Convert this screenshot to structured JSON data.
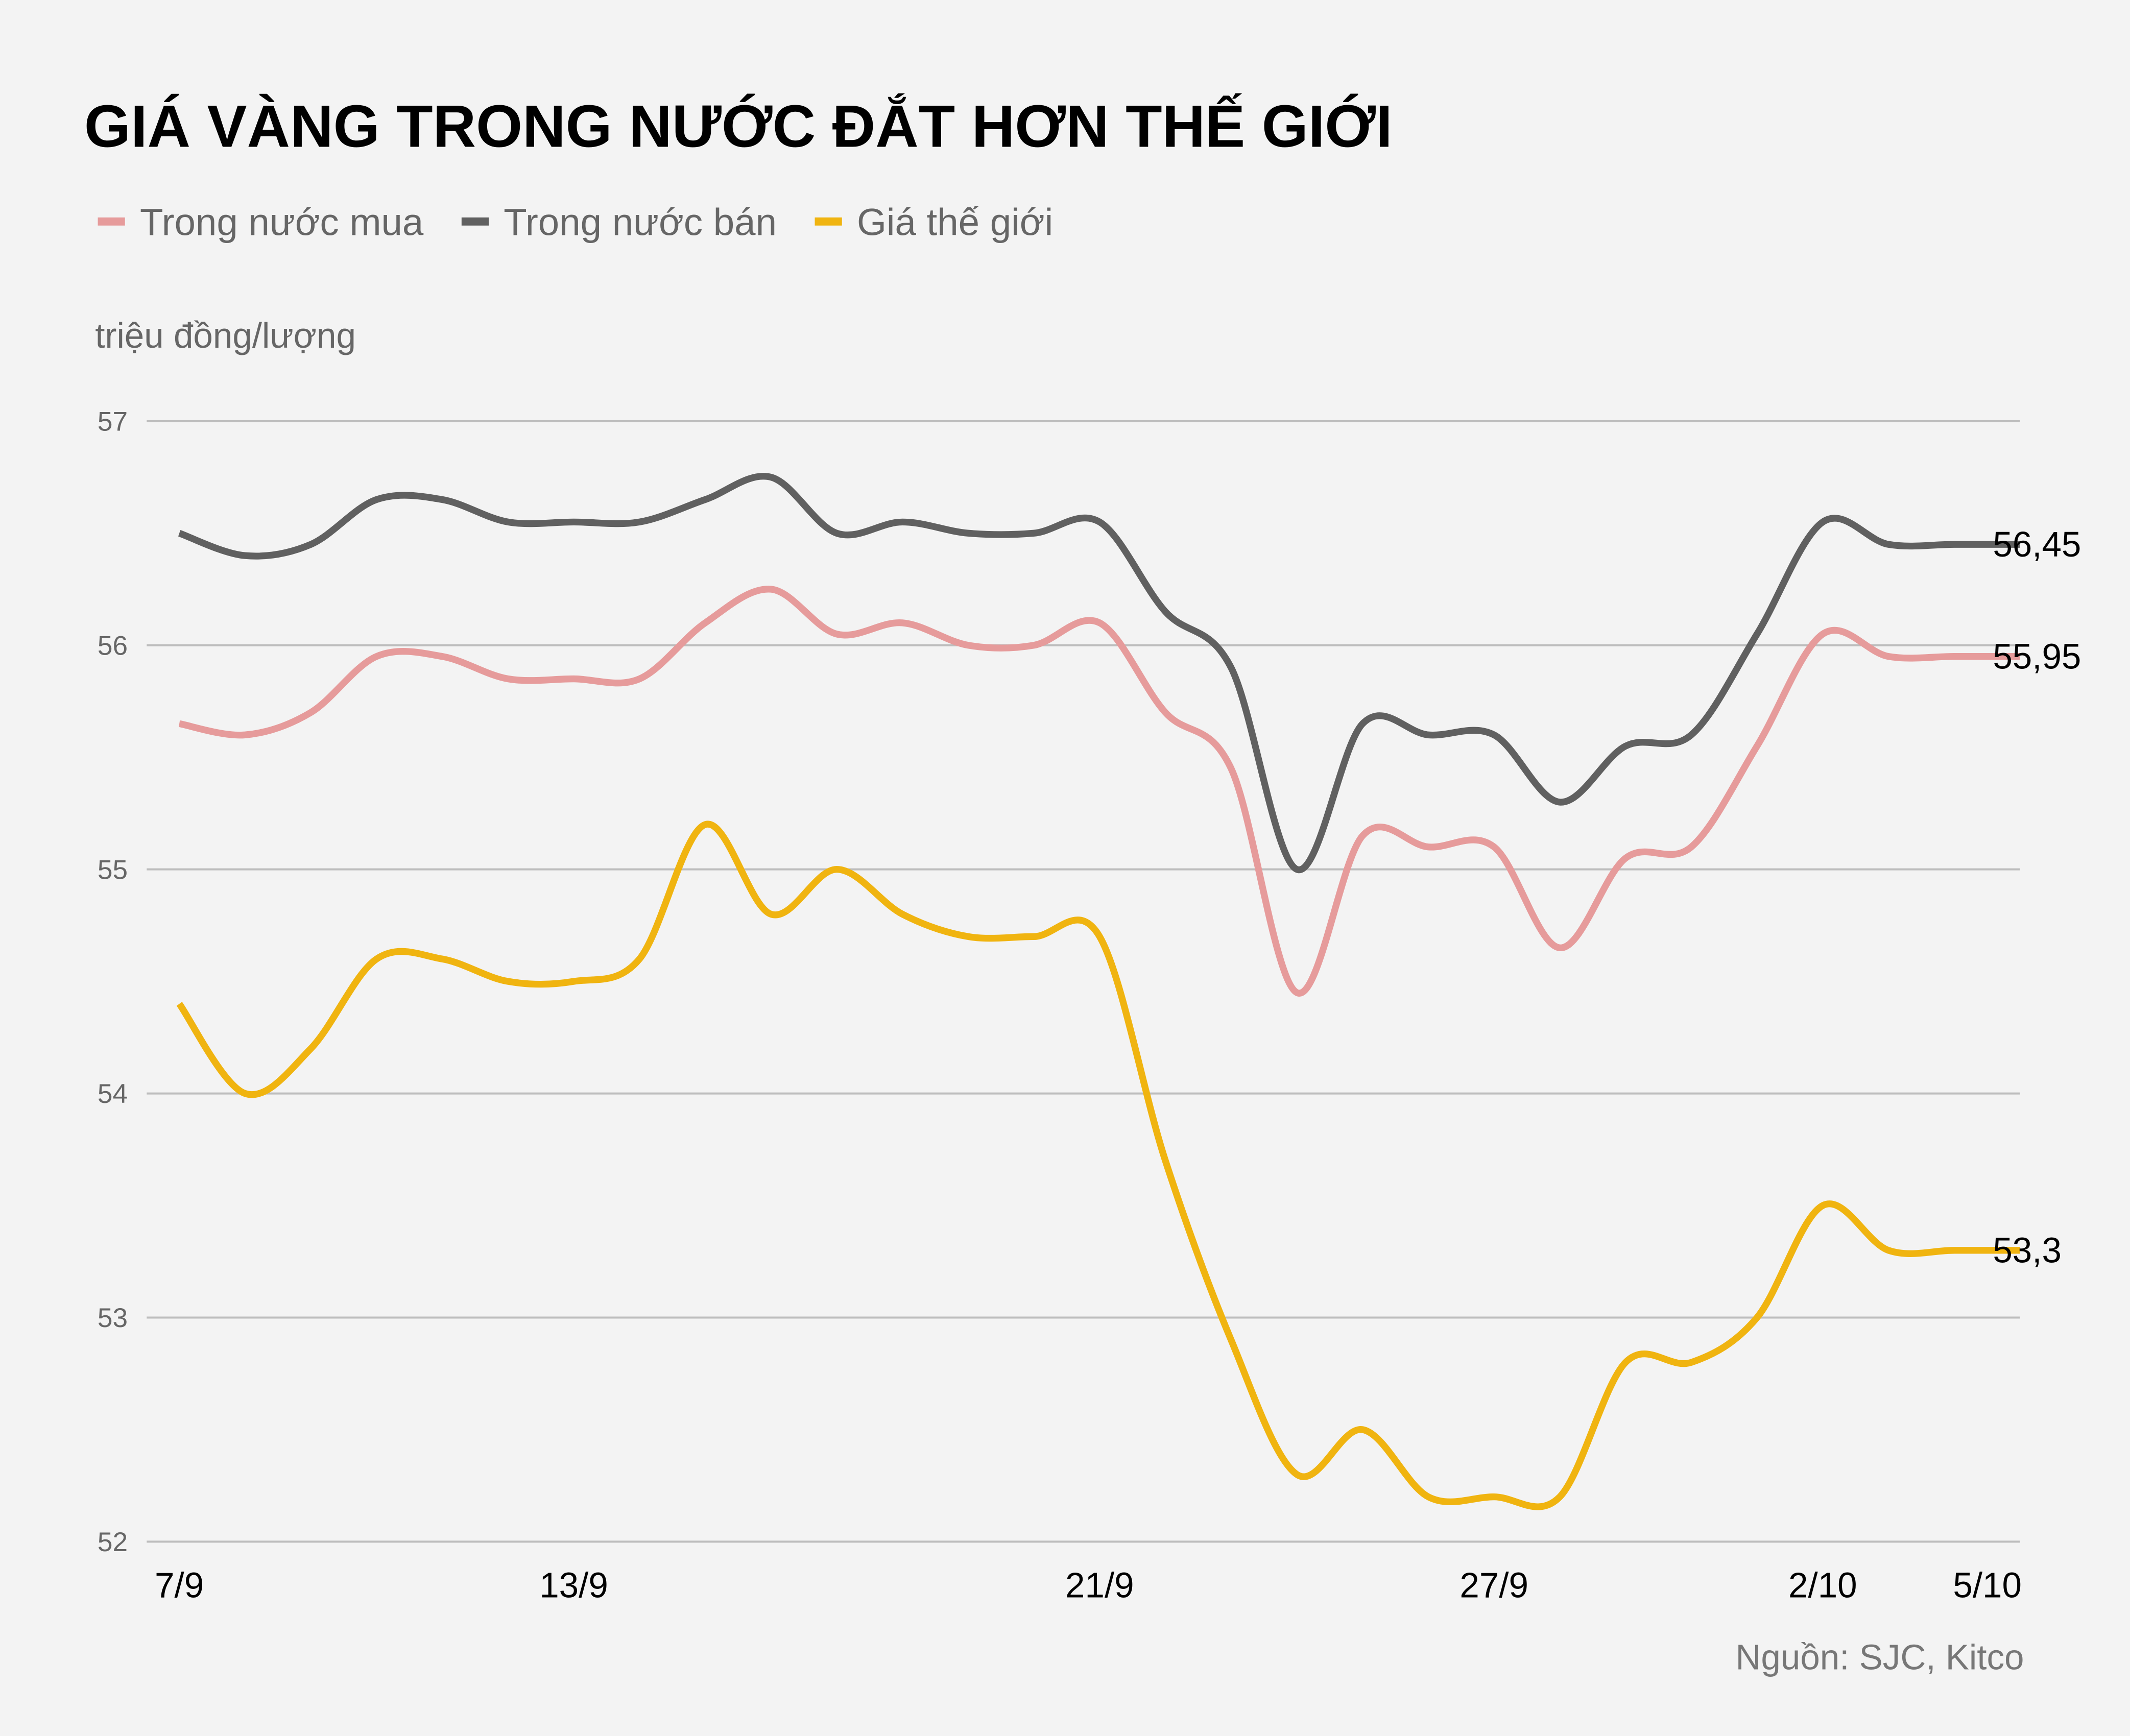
{
  "chart_data": {
    "type": "line",
    "title": "GIÁ VÀNG TRONG NƯỚC ĐẮT HƠN THẾ GIỚI",
    "y_label": "triệu đồng/lượng",
    "source": "Nguồn: SJC, Kitco",
    "categories": [
      "7/9",
      null,
      null,
      null,
      null,
      null,
      "13/9",
      null,
      null,
      null,
      null,
      null,
      null,
      null,
      "21/9",
      null,
      null,
      null,
      null,
      null,
      "27/9",
      null,
      null,
      null,
      null,
      "2/10",
      null,
      null,
      "5/10"
    ],
    "series": [
      {
        "name": "Trong nước mua",
        "color": "#e69b9b",
        "values": [
          55.65,
          55.6,
          55.7,
          55.95,
          55.95,
          55.85,
          55.85,
          55.85,
          56.1,
          56.25,
          56.05,
          56.1,
          56.0,
          56.0,
          56.1,
          55.7,
          55.45,
          54.45,
          55.15,
          55.1,
          55.1,
          54.65,
          55.05,
          55.1,
          55.55,
          56.05,
          55.95,
          55.95,
          55.95
        ],
        "value_labels": [
          null,
          null,
          null,
          null,
          null,
          null,
          null,
          null,
          null,
          null,
          null,
          null,
          null,
          null,
          null,
          null,
          null,
          null,
          null,
          null,
          null,
          null,
          null,
          null,
          null,
          null,
          null,
          null,
          "55,95"
        ]
      },
      {
        "name": "Trong nước bán",
        "color": "#606060",
        "values": [
          56.5,
          56.4,
          56.45,
          56.65,
          56.65,
          56.55,
          56.55,
          56.55,
          56.65,
          56.75,
          56.5,
          56.55,
          56.5,
          56.5,
          56.55,
          56.15,
          55.9,
          55.0,
          55.65,
          55.6,
          55.6,
          55.3,
          55.55,
          55.6,
          56.05,
          56.55,
          56.45,
          56.45,
          56.45
        ],
        "value_labels": [
          null,
          null,
          null,
          null,
          null,
          null,
          null,
          null,
          null,
          null,
          null,
          null,
          null,
          null,
          null,
          null,
          null,
          null,
          null,
          null,
          null,
          null,
          null,
          null,
          null,
          null,
          null,
          null,
          "56,45"
        ]
      },
      {
        "name": "Giá thế giới",
        "color": "#f0b410",
        "values": [
          54.4,
          54.0,
          54.2,
          54.6,
          54.6,
          54.5,
          54.5,
          54.6,
          55.2,
          54.8,
          55.0,
          54.8,
          54.7,
          54.7,
          54.7,
          53.7,
          52.9,
          52.3,
          52.5,
          52.2,
          52.2,
          52.2,
          52.8,
          52.8,
          53.0,
          53.5,
          53.3,
          53.3,
          53.3
        ],
        "value_labels": [
          null,
          null,
          null,
          null,
          null,
          null,
          null,
          null,
          null,
          null,
          null,
          null,
          null,
          null,
          null,
          null,
          null,
          null,
          null,
          null,
          null,
          null,
          null,
          null,
          null,
          null,
          null,
          null,
          "53,3"
        ]
      }
    ],
    "ylim": [
      52,
      57
    ],
    "yticks": [
      52,
      53,
      54,
      55,
      56,
      57
    ],
    "grid": true
  }
}
